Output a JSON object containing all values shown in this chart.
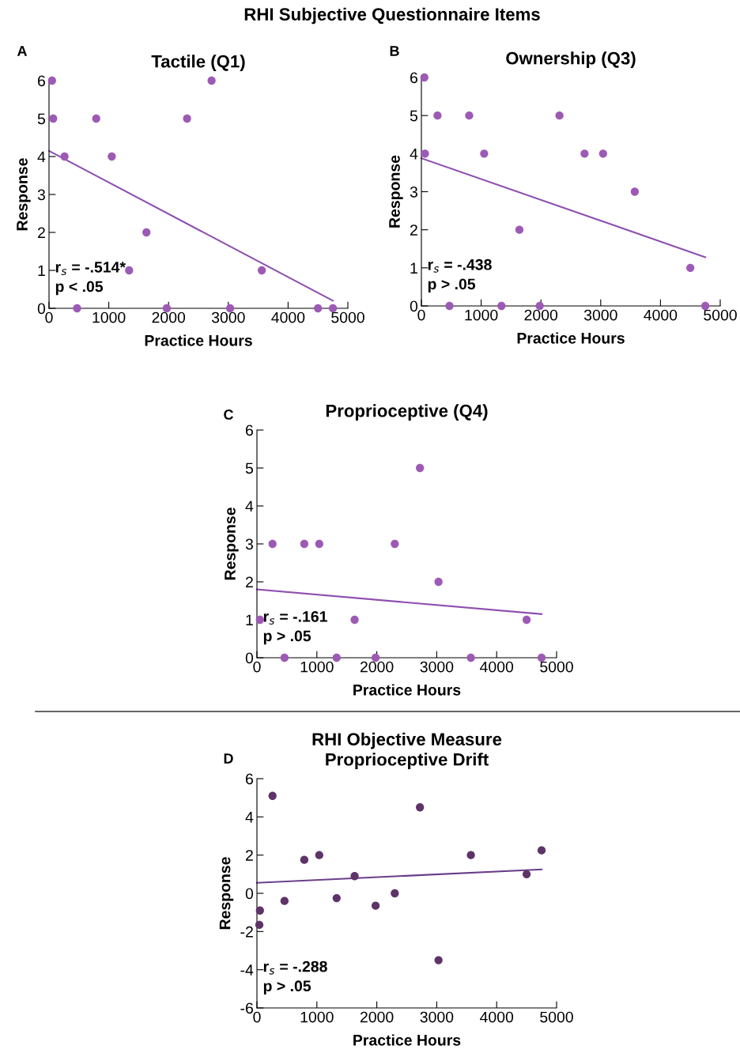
{
  "chart_data": [
    {
      "type": "scatter",
      "title": "Tactile (Q1)",
      "xlabel": "Practice Hours",
      "ylabel": "Response",
      "annotations": [
        "RHI Subjective Questionnaire Items",
        "A",
        "r$_{s}$ = -.514*",
        "p < .05"
      ],
      "xlim": [
        0,
        5000
      ],
      "ylim": [
        0,
        6
      ],
      "xticks": [
        0,
        1000,
        2000,
        3000,
        4000,
        5000
      ],
      "yticks": [
        0,
        1,
        2,
        3,
        4,
        5,
        6
      ],
      "grid": false,
      "series": [
        {
          "marker": "circle",
          "color": "#9d5ab5",
          "x": [
            50,
            70,
            260,
            470,
            790,
            1050,
            1340,
            1630,
            1970,
            2310,
            2720,
            3030,
            3560,
            4500,
            4750
          ],
          "values": [
            6,
            5,
            4,
            0,
            5,
            4,
            1,
            2,
            0,
            5,
            6,
            0,
            1,
            0,
            0
          ]
        },
        {
          "type": "line",
          "color": "#8e4fb0",
          "x": [
            0,
            4750
          ],
          "values": [
            4.15,
            0.2
          ]
        }
      ]
    },
    {
      "type": "scatter",
      "title": "Ownership (Q3)",
      "xlabel": "Practice Hours",
      "ylabel": "Response",
      "annotations": [
        "B",
        "r$_{s}$ = -.438",
        "p > .05"
      ],
      "xlim": [
        0,
        5000
      ],
      "ylim": [
        0,
        6
      ],
      "xticks": [
        0,
        1000,
        2000,
        3000,
        4000,
        5000
      ],
      "yticks": [
        0,
        1,
        2,
        3,
        4,
        5,
        6
      ],
      "grid": false,
      "series": [
        {
          "marker": "circle",
          "color": "#9d5ab5",
          "x": [
            50,
            60,
            270,
            470,
            800,
            1050,
            1340,
            1640,
            1980,
            2310,
            2730,
            3040,
            3570,
            4500,
            4750
          ],
          "values": [
            6,
            4,
            5,
            0,
            5,
            4,
            0,
            2,
            0,
            5,
            4,
            4,
            3,
            1,
            0
          ]
        },
        {
          "type": "line",
          "color": "#8e4fb0",
          "x": [
            0,
            4750
          ],
          "values": [
            3.88,
            1.28
          ]
        }
      ]
    },
    {
      "type": "scatter",
      "title": "Proprioceptive (Q4)",
      "xlabel": "Practice Hours",
      "ylabel": "Response",
      "annotations": [
        "C",
        "r$_{s}$ = -.161",
        "p > .05"
      ],
      "xlim": [
        0,
        5000
      ],
      "ylim": [
        0,
        6
      ],
      "xticks": [
        0,
        1000,
        2000,
        3000,
        4000,
        5000
      ],
      "yticks": [
        0,
        1,
        2,
        3,
        4,
        5,
        6
      ],
      "grid": false,
      "series": [
        {
          "marker": "circle",
          "color": "#9d5ab5",
          "x": [
            50,
            260,
            460,
            790,
            1040,
            1330,
            1630,
            1980,
            2300,
            2720,
            3030,
            3570,
            4500,
            4750
          ],
          "values": [
            1,
            3,
            0,
            3,
            3,
            0,
            1,
            0,
            3,
            5,
            2,
            0,
            1,
            0
          ]
        },
        {
          "type": "line",
          "color": "#8e4fb0",
          "x": [
            0,
            4750
          ],
          "values": [
            1.8,
            1.15
          ]
        }
      ]
    },
    {
      "type": "scatter",
      "title": "RHI Objective Measure\nProprioceptive Drift",
      "xlabel": "Practice Hours",
      "ylabel": "Response",
      "annotations": [
        "D",
        "r$_{s}$ = -.288",
        "p > .05"
      ],
      "xlim": [
        0,
        5000
      ],
      "ylim": [
        -6,
        6
      ],
      "xticks": [
        0,
        1000,
        2000,
        3000,
        4000,
        5000
      ],
      "yticks": [
        -6,
        -4,
        -2,
        0,
        2,
        4,
        6
      ],
      "grid": false,
      "series": [
        {
          "marker": "circle",
          "color": "#5e3468",
          "x": [
            50,
            40,
            260,
            460,
            790,
            1040,
            1330,
            1630,
            1980,
            2300,
            2720,
            3030,
            3570,
            4500,
            4750
          ],
          "values": [
            -0.9,
            -1.65,
            5.1,
            -0.4,
            1.75,
            2.0,
            -0.25,
            0.9,
            -0.65,
            0.0,
            4.5,
            -3.5,
            2.0,
            1.0,
            2.25
          ]
        },
        {
          "type": "line",
          "color": "#6a3d8a",
          "x": [
            0,
            4750
          ],
          "values": [
            0.55,
            1.25
          ]
        }
      ]
    }
  ]
}
